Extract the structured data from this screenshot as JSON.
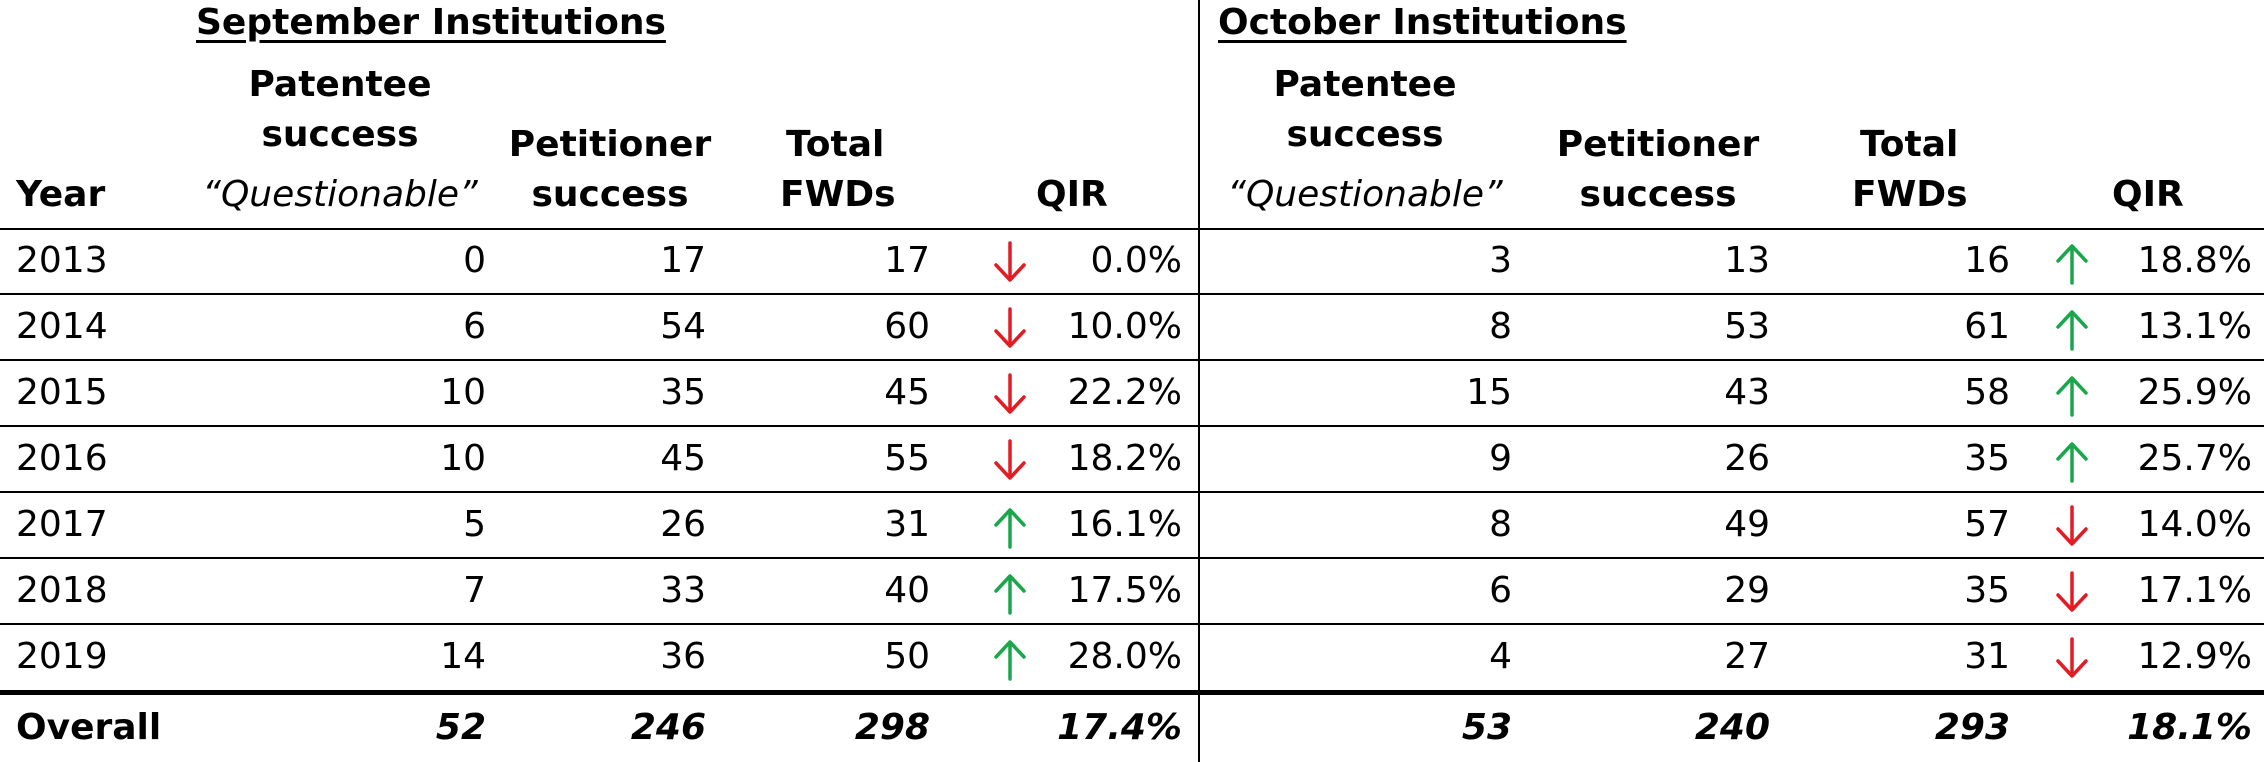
{
  "sections": [
    {
      "title": "September Institutions"
    },
    {
      "title": "October Institutions"
    }
  ],
  "headers": {
    "year": "Year",
    "patentee_line1": "Patentee",
    "patentee_line2": "success",
    "patentee_line3": "“Questionable”",
    "petitioner_line1": "Petitioner",
    "petitioner_line2": "success",
    "total_line1": "Total",
    "total_line2": "FWDs",
    "qir": "QIR"
  },
  "colors": {
    "up": "#1aa64b",
    "down": "#e31b23"
  },
  "rows": [
    {
      "year": "2013",
      "sep": {
        "patentee": "0",
        "petitioner": "17",
        "total": "17",
        "trend": "down",
        "qir": "0.0%"
      },
      "oct": {
        "patentee": "3",
        "petitioner": "13",
        "total": "16",
        "trend": "up",
        "qir": "18.8%"
      }
    },
    {
      "year": "2014",
      "sep": {
        "patentee": "6",
        "petitioner": "54",
        "total": "60",
        "trend": "down",
        "qir": "10.0%"
      },
      "oct": {
        "patentee": "8",
        "petitioner": "53",
        "total": "61",
        "trend": "up",
        "qir": "13.1%"
      }
    },
    {
      "year": "2015",
      "sep": {
        "patentee": "10",
        "petitioner": "35",
        "total": "45",
        "trend": "down",
        "qir": "22.2%"
      },
      "oct": {
        "patentee": "15",
        "petitioner": "43",
        "total": "58",
        "trend": "up",
        "qir": "25.9%"
      }
    },
    {
      "year": "2016",
      "sep": {
        "patentee": "10",
        "petitioner": "45",
        "total": "55",
        "trend": "down",
        "qir": "18.2%"
      },
      "oct": {
        "patentee": "9",
        "petitioner": "26",
        "total": "35",
        "trend": "up",
        "qir": "25.7%"
      }
    },
    {
      "year": "2017",
      "sep": {
        "patentee": "5",
        "petitioner": "26",
        "total": "31",
        "trend": "up",
        "qir": "16.1%"
      },
      "oct": {
        "patentee": "8",
        "petitioner": "49",
        "total": "57",
        "trend": "down",
        "qir": "14.0%"
      }
    },
    {
      "year": "2018",
      "sep": {
        "patentee": "7",
        "petitioner": "33",
        "total": "40",
        "trend": "up",
        "qir": "17.5%"
      },
      "oct": {
        "patentee": "6",
        "petitioner": "29",
        "total": "35",
        "trend": "down",
        "qir": "17.1%"
      }
    },
    {
      "year": "2019",
      "sep": {
        "patentee": "14",
        "petitioner": "36",
        "total": "50",
        "trend": "up",
        "qir": "28.0%"
      },
      "oct": {
        "patentee": "4",
        "petitioner": "27",
        "total": "31",
        "trend": "down",
        "qir": "12.9%"
      }
    }
  ],
  "overall": {
    "label": "Overall",
    "sep": {
      "patentee": "52",
      "petitioner": "246",
      "total": "298",
      "qir": "17.4%"
    },
    "oct": {
      "patentee": "53",
      "petitioner": "240",
      "total": "293",
      "qir": "18.1%"
    }
  }
}
